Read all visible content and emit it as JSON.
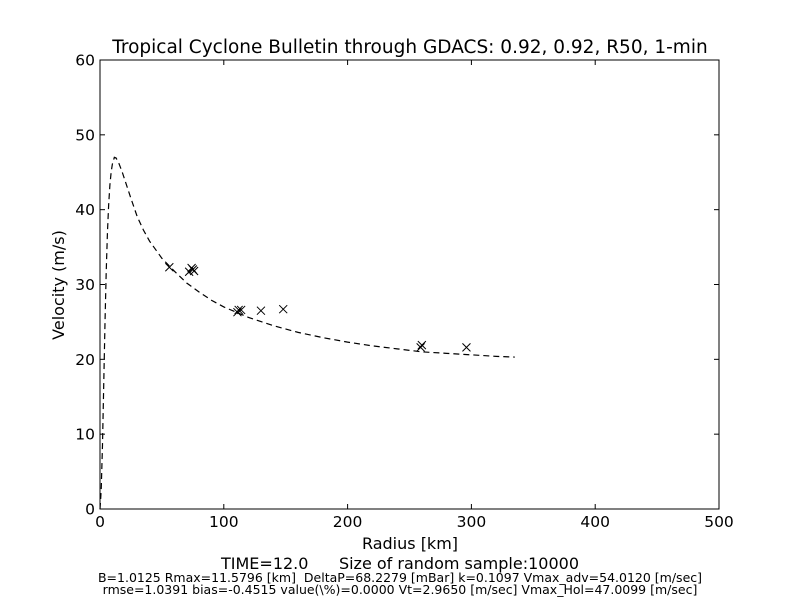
{
  "chart_data": {
    "type": "scatter",
    "title": "Tropical Cyclone Bulletin through GDACS: 0.92, 0.92, R50, 1-min",
    "xlabel": "Radius [km]",
    "ylabel": "Velocity (m/s)",
    "xlim": [
      0,
      500
    ],
    "ylim": [
      0,
      60
    ],
    "xticks": [
      0,
      100,
      200,
      300,
      400,
      500
    ],
    "yticks": [
      0,
      10,
      20,
      30,
      40,
      50,
      60
    ],
    "grid": false,
    "series": [
      {
        "style": "dashed-line",
        "color": "#000000",
        "x": [
          0,
          0.5,
          1,
          2,
          3,
          4,
          5,
          6,
          7,
          8,
          9,
          10,
          11.58,
          13,
          15,
          18,
          20,
          25,
          30,
          35,
          40,
          50,
          60,
          70,
          80,
          90,
          100,
          120,
          140,
          160,
          180,
          200,
          220,
          240,
          260,
          280,
          300,
          320,
          335
        ],
        "y": [
          0,
          1.2,
          2.7,
          8.5,
          16.5,
          24.6,
          31.6,
          36.9,
          40.7,
          43.3,
          45.0,
          46.1,
          47.0,
          46.9,
          46.3,
          45.0,
          44.0,
          41.5,
          39.1,
          37.3,
          35.8,
          33.5,
          31.8,
          30.2,
          29.0,
          27.9,
          27.0,
          25.6,
          24.5,
          23.6,
          22.9,
          22.3,
          21.8,
          21.4,
          21.0,
          20.8,
          20.6,
          20.4,
          20.3
        ]
      },
      {
        "style": "x-markers",
        "color": "#000000",
        "x": [
          56,
          72,
          74,
          75,
          76,
          111,
          112,
          114,
          130,
          148,
          259,
          260,
          296
        ],
        "y": [
          32.3,
          31.7,
          32.2,
          32.0,
          31.8,
          26.3,
          26.6,
          26.6,
          26.5,
          26.7,
          21.6,
          21.9,
          21.6
        ]
      }
    ]
  },
  "footer": {
    "line1": "TIME=12.0      Size of random sample:10000",
    "line2": "B=1.0125 Rmax=11.5796 [km]  DeltaP=68.2279 [mBar] k=0.1097 Vmax_adv=54.0120 [m/sec]",
    "line3": "rmse=1.0391 bias=-0.4515 value(\\%)=0.0000 Vt=2.9650 [m/sec] Vmax_Hol=47.0099 [m/sec]"
  }
}
